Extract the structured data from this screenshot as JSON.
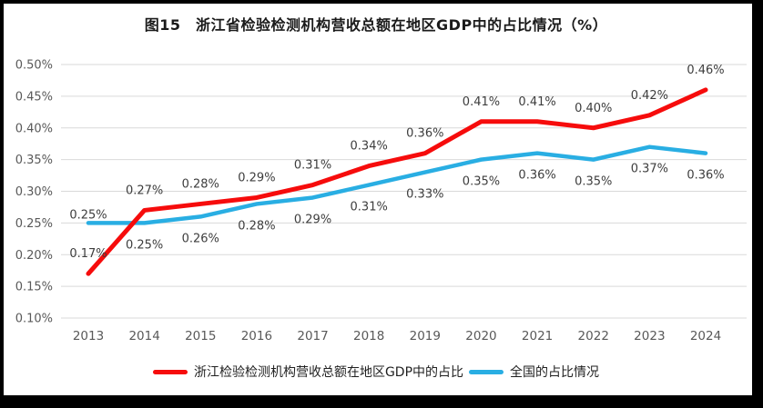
{
  "frame": {
    "border_color": "#000000",
    "background": "#ffffff"
  },
  "chart_data": {
    "type": "line",
    "title": "图15　浙江省检验检测机构营收总额在地区GDP中的占比情况（%）",
    "categories": [
      "2013",
      "2014",
      "2015",
      "2016",
      "2017",
      "2018",
      "2019",
      "2020",
      "2021",
      "2022",
      "2023",
      "2024"
    ],
    "series": [
      {
        "id": "zhejiang",
        "name": "浙江检验检测机构营收总额在地区GDP中的占比",
        "color": "#f60c0c",
        "values": [
          0.17,
          0.27,
          0.28,
          0.29,
          0.31,
          0.34,
          0.36,
          0.41,
          0.41,
          0.4,
          0.42,
          0.46
        ],
        "labels": [
          "0.17%",
          "0.27%",
          "0.28%",
          "0.29%",
          "0.31%",
          "0.34%",
          "0.36%",
          "0.41%",
          "0.41%",
          "0.40%",
          "0.42%",
          "0.46%"
        ],
        "label_position": "above"
      },
      {
        "id": "national",
        "name": "全国的占比情况",
        "color": "#29aee3",
        "values": [
          0.25,
          0.25,
          0.26,
          0.28,
          0.29,
          0.31,
          0.33,
          0.35,
          0.36,
          0.35,
          0.37,
          0.36
        ],
        "labels": [
          "0.25%",
          "0.25%",
          "0.26%",
          "0.28%",
          "0.29%",
          "0.31%",
          "0.33%",
          "0.35%",
          "0.36%",
          "0.35%",
          "0.37%",
          "0.36%"
        ],
        "label_position": "below",
        "label_position_overrides": {
          "0": "above-tight"
        }
      }
    ],
    "y_axis": {
      "min": 0.1,
      "max": 0.5,
      "step": 0.05,
      "tick_labels": [
        "0.10%",
        "0.15%",
        "0.20%",
        "0.25%",
        "0.30%",
        "0.35%",
        "0.40%",
        "0.45%",
        "0.50%"
      ]
    },
    "ylim": [
      0.1,
      0.5
    ],
    "grid": true,
    "legend_position": "bottom"
  },
  "styles": {
    "grid_color": "#d9d9d9",
    "axis_text_color": "#595959",
    "data_label_color": "#3d3d3d",
    "title_color": "#1a1a1a",
    "legend_text_color": "#1f1f1f"
  }
}
